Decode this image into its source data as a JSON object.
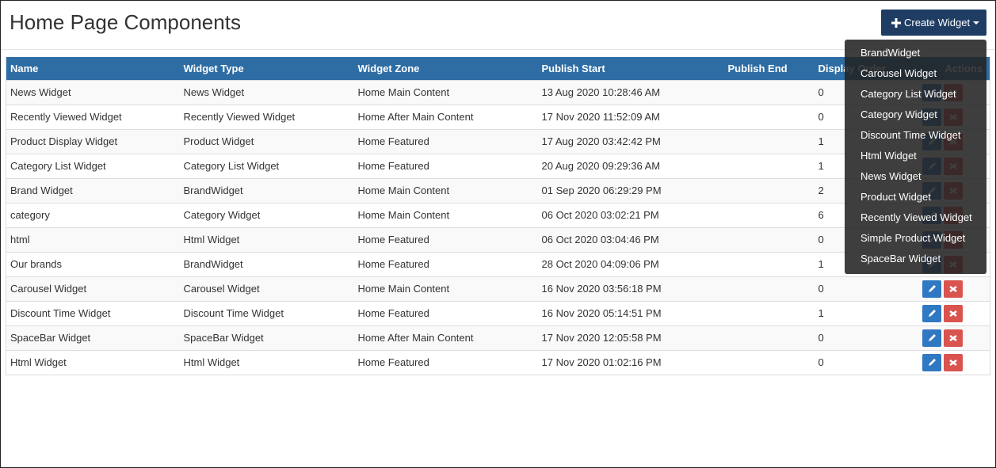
{
  "header": {
    "title": "Home Page Components",
    "button": "Create Widget"
  },
  "table": {
    "columns": [
      "Name",
      "Widget Type",
      "Widget Zone",
      "Publish Start",
      "Publish End",
      "Display Order",
      "Actions"
    ],
    "rows": [
      [
        "News Widget",
        "News Widget",
        "Home Main Content",
        "13 Aug 2020 10:28:46 AM",
        0
      ],
      [
        "Recently Viewed Widget",
        "Recently Viewed Widget",
        "Home After Main Content",
        "17 Nov 2020 11:52:09 AM",
        0
      ],
      [
        "Product Display Widget",
        "Product Widget",
        "Home Featured",
        "17 Aug 2020 03:42:42 PM",
        1
      ],
      [
        "Category List Widget",
        "Category List Widget",
        "Home Featured",
        "20 Aug 2020 09:29:36 AM",
        1
      ],
      [
        "Brand Widget",
        "BrandWidget",
        "Home Main Content",
        "01 Sep 2020 06:29:29 PM",
        2
      ],
      [
        "category",
        "Category Widget",
        "Home Main Content",
        "06 Oct 2020 03:02:21 PM",
        6
      ],
      [
        "html",
        "Html Widget",
        "Home Featured",
        "06 Oct 2020 03:04:46 PM",
        0
      ],
      [
        "Our brands",
        "BrandWidget",
        "Home Featured",
        "28 Oct 2020 04:09:06 PM",
        1
      ],
      [
        "Carousel Widget",
        "Carousel Widget",
        "Home Main Content",
        "16 Nov 2020 03:56:18 PM",
        0
      ],
      [
        "Discount Time Widget",
        "Discount Time Widget",
        "Home Featured",
        "16 Nov 2020 05:14:51 PM",
        1
      ],
      [
        "SpaceBar Widget",
        "SpaceBar Widget",
        "Home After Main Content",
        "17 Nov 2020 12:05:58 PM",
        0
      ],
      [
        "Html Widget",
        "Html Widget",
        "Home Featured",
        "17 Nov 2020 01:02:16 PM",
        0
      ]
    ]
  },
  "dropdown": {
    "items": [
      "BrandWidget",
      "Carousel Widget",
      "Category List Widget",
      "Category Widget",
      "Discount Time Widget",
      "Html Widget",
      "News Widget",
      "Product Widget",
      "Recently Viewed Widget",
      "Simple Product Widget",
      "SpaceBar Widget"
    ]
  }
}
